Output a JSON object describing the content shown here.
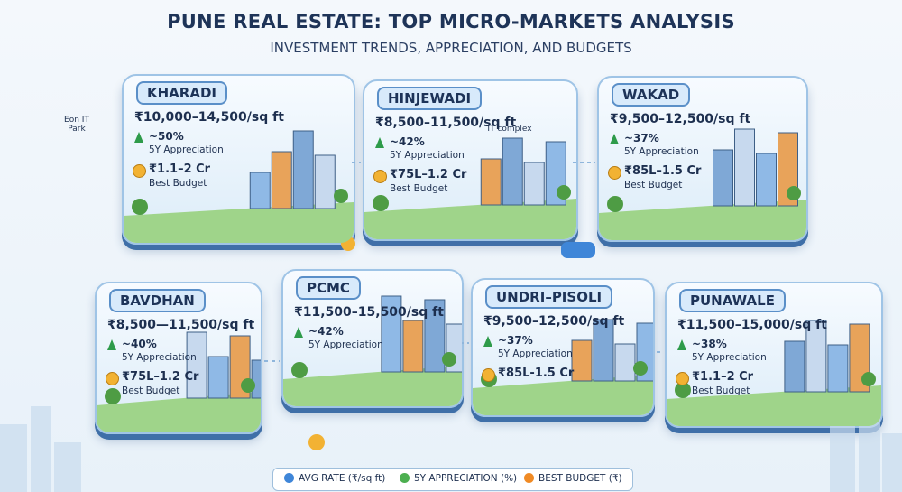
{
  "header": {
    "title": "PUNE REAL ESTATE: TOP MICRO-MARKETS ANALYSIS",
    "subtitle": "INVESTMENT TRENDS, APPRECIATION, AND BUDGETS"
  },
  "markets": [
    {
      "name": "KHARADI",
      "rate": "₹10,000–14,500/sq ft",
      "appreciation": "~50%",
      "appreciation_label": "5Y Appreciation",
      "budget": "₹1.1–2 Cr",
      "budget_label": "Best Budget",
      "note": "Eon IT Park"
    },
    {
      "name": "HINJEWADI",
      "rate": "₹8,500–11,500/sq ft",
      "appreciation": "~42%",
      "appreciation_label": "5Y Appreciation",
      "budget": "₹75L–1.2 Cr",
      "budget_label": "Best Budget",
      "note": "IT complex"
    },
    {
      "name": "WAKAD",
      "rate": "₹9,500–12,500/sq ft",
      "appreciation": "~37%",
      "appreciation_label": "5Y Appreciation",
      "budget": "₹85L–1.5 Cr",
      "budget_label": "Best Budget"
    },
    {
      "name": "BAVDHAN",
      "rate": "₹8,500—11,500/sq ft",
      "appreciation": "~40%",
      "appreciation_label": "5Y Appreciation",
      "budget": "₹75L–1.2 Cr",
      "budget_label": "Best Budget"
    },
    {
      "name": "PCMC",
      "rate": "₹11,500–15,500/sq ft",
      "appreciation": "~42%",
      "appreciation_label": "5Y Appreciation"
    },
    {
      "name": "UNDRI–PISOLI",
      "rate": "₹9,500–12,500/sq ft",
      "appreciation": "~37%",
      "appreciation_label": "5Y Appreciation",
      "budget": "₹85L-1.5 Cr"
    },
    {
      "name": "PUNAWALE",
      "rate": "₹11,500–15,000/sq ft",
      "appreciation": "~38%",
      "appreciation_label": "5Y Appreciation",
      "budget": "₹1.1–2 Cr",
      "budget_label": "Best Budget"
    }
  ],
  "legend": {
    "items": [
      "AVG RATE (₹/sq ft)",
      "5Y APPRECIATION (%)",
      "BEST BUDGET (₹)"
    ]
  }
}
